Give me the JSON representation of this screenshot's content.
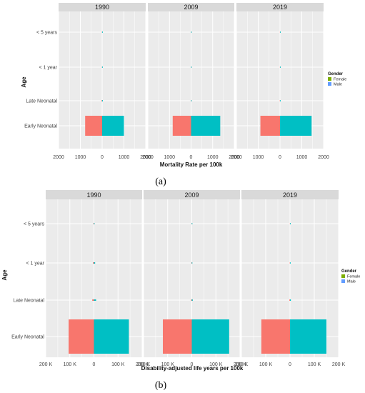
{
  "colors": {
    "panel_bg": "#ebebeb",
    "strip_bg": "#d9d9d9",
    "grid": "#ffffff",
    "female_fill": "#f8766d",
    "male_fill": "#00bfc4",
    "legend_female": "#7cae00",
    "legend_male": "#619cff"
  },
  "chart_data": [
    {
      "type": "bar",
      "caption": "(a)",
      "facets": [
        "1990",
        "2009",
        "2019"
      ],
      "categories": [
        "< 5 years",
        "< 1 year",
        "Late Neonatal",
        "Early Neonatal"
      ],
      "xlabel": "Mortality Rate per 100k",
      "ylabel": "Age",
      "xlim": [
        -2000,
        2000
      ],
      "xticks": [
        -2000,
        -1000,
        0,
        1000,
        2000
      ],
      "xtick_labels": [
        "2000",
        "1000",
        "0",
        "1000",
        "2000"
      ],
      "legend_title": "Gender",
      "legend_entries": [
        "Female",
        "Male"
      ],
      "series": [
        {
          "name": "Female",
          "values": [
            [
              -10,
              -10,
              -25,
              -780
            ],
            [
              -5,
              -5,
              -10,
              -850
            ],
            [
              -5,
              -5,
              -10,
              -900
            ]
          ]
        },
        {
          "name": "Male",
          "values": [
            [
              10,
              15,
              30,
              1000
            ],
            [
              5,
              10,
              15,
              1350
            ],
            [
              5,
              10,
              15,
              1450
            ]
          ]
        }
      ]
    },
    {
      "type": "bar",
      "caption": "(b)",
      "facets": [
        "1990",
        "2009",
        "2019"
      ],
      "categories": [
        "< 5 years",
        "< 1 year",
        "Late Neonatal",
        "Early Neonatal"
      ],
      "xlabel": "Disability-adjusted life years per 100k",
      "ylabel": "Age",
      "xlim": [
        -200000,
        200000
      ],
      "xticks": [
        -200000,
        -100000,
        0,
        100000,
        200000
      ],
      "xtick_labels": [
        "200 K",
        "100 K",
        "0",
        "100 K",
        "200 K"
      ],
      "legend_title": "Gender",
      "legend_entries": [
        "Female",
        "Male"
      ],
      "series": [
        {
          "name": "Female",
          "values": [
            [
              -2000,
              -4000,
              -7000,
              -105000
            ],
            [
              -800,
              -1500,
              -3000,
              -120000
            ],
            [
              -500,
              -1000,
              -2500,
              -118000
            ]
          ]
        },
        {
          "name": "Male",
          "values": [
            [
              2500,
              5000,
              9000,
              145000
            ],
            [
              1000,
              2000,
              4000,
              155000
            ],
            [
              700,
              1500,
              3500,
              150000
            ]
          ]
        }
      ]
    }
  ]
}
